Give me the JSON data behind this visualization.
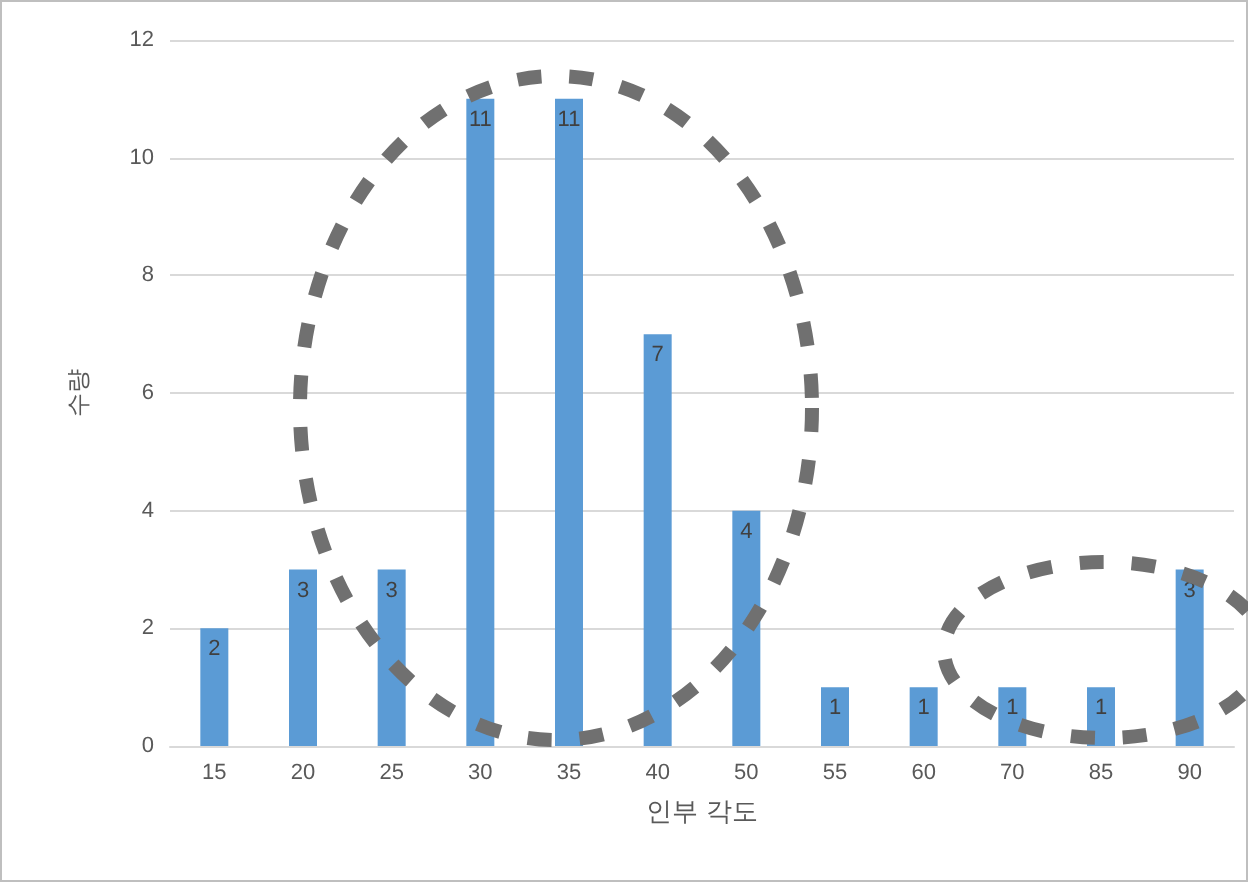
{
  "chart_data": {
    "type": "bar",
    "xlabel": "인부 각도",
    "ylabel": "수량",
    "categories": [
      "15",
      "20",
      "25",
      "30",
      "35",
      "40",
      "50",
      "55",
      "60",
      "70",
      "85",
      "90"
    ],
    "values": [
      2,
      3,
      3,
      11,
      11,
      7,
      4,
      1,
      1,
      1,
      1,
      3
    ],
    "color": "#5b9bd5",
    "ylim": [
      0,
      12
    ],
    "yticks": [
      0,
      2,
      4,
      6,
      8,
      10,
      12
    ],
    "grid": "y",
    "data_labels": true
  }
}
